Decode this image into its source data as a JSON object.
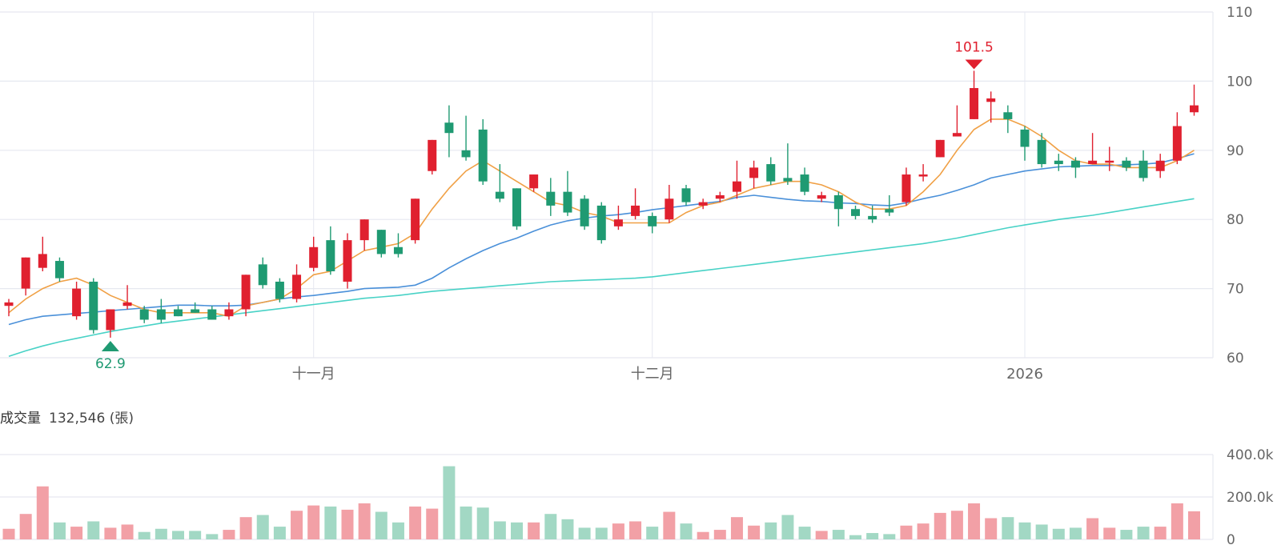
{
  "volume_header": {
    "label": "成交量",
    "value": "132,546 (張)"
  },
  "colors": {
    "up": "#e0202f",
    "down": "#1f9a72",
    "ma_short": "#f0a045",
    "ma_mid": "#4a90d9",
    "ma_long": "#48d2c6",
    "up_vol": "#f2a0a6",
    "down_vol": "#a2d8c4",
    "grid": "#e6e8f0",
    "axis_text": "#666666"
  },
  "chart_data": [
    {
      "type": "candlestick",
      "y_axis": {
        "ticks": [
          110,
          100,
          90,
          80,
          70,
          60
        ],
        "ylim": [
          60,
          110
        ],
        "position": "right"
      },
      "x_axis": {
        "labels": [
          {
            "text": "十一月",
            "index": 18
          },
          {
            "text": "十二月",
            "index": 38
          },
          {
            "text": "2026",
            "index": 60
          }
        ]
      },
      "annotations": [
        {
          "text": "101.5",
          "index": 57,
          "value": 101.5,
          "kind": "high"
        },
        {
          "text": "62.9",
          "index": 6,
          "value": 62.9,
          "kind": "low"
        }
      ],
      "ohlc": [
        [
          67.5,
          68.0,
          66.0,
          68.5
        ],
        [
          70.0,
          74.5,
          69.0,
          74.5
        ],
        [
          73.0,
          75.0,
          72.5,
          77.5
        ],
        [
          74.0,
          71.5,
          71.0,
          74.5
        ],
        [
          66.0,
          70.0,
          65.5,
          71.0
        ],
        [
          71.0,
          64.0,
          63.5,
          71.5
        ],
        [
          64.0,
          67.0,
          62.9,
          67.0
        ],
        [
          67.5,
          68.0,
          67.0,
          70.5
        ],
        [
          67.0,
          65.5,
          65.0,
          67.5
        ],
        [
          67.0,
          65.5,
          65.0,
          68.5
        ],
        [
          67.0,
          66.0,
          66.0,
          67.5
        ],
        [
          67.0,
          66.5,
          66.5,
          68.0
        ],
        [
          67.0,
          65.5,
          65.5,
          67.5
        ],
        [
          66.0,
          67.0,
          65.5,
          68.0
        ],
        [
          67.0,
          72.0,
          66.0,
          72.0
        ],
        [
          73.5,
          70.5,
          70.0,
          74.5
        ],
        [
          71.0,
          68.5,
          68.0,
          71.5
        ],
        [
          68.5,
          72.0,
          68.0,
          73.5
        ],
        [
          73.0,
          76.0,
          72.5,
          77.5
        ],
        [
          77.0,
          72.5,
          72.0,
          79.0
        ],
        [
          71.0,
          77.0,
          70.0,
          78.0
        ],
        [
          77.0,
          80.0,
          75.5,
          80.0
        ],
        [
          78.5,
          75.0,
          74.5,
          78.5
        ],
        [
          76.0,
          75.0,
          74.5,
          78.0
        ],
        [
          77.0,
          83.0,
          76.5,
          83.0
        ],
        [
          87.0,
          91.5,
          86.5,
          91.5
        ],
        [
          94.0,
          92.5,
          89.0,
          96.5
        ],
        [
          90.0,
          89.0,
          88.5,
          95.0
        ],
        [
          93.0,
          85.5,
          85.0,
          94.5
        ],
        [
          84.0,
          83.0,
          82.5,
          88.0
        ],
        [
          84.5,
          79.0,
          78.5,
          84.5
        ],
        [
          84.5,
          86.5,
          84.0,
          86.5
        ],
        [
          84.0,
          82.0,
          80.5,
          86.0
        ],
        [
          84.0,
          81.0,
          80.5,
          87.0
        ],
        [
          83.0,
          79.0,
          78.5,
          83.5
        ],
        [
          82.0,
          77.0,
          76.5,
          82.5
        ],
        [
          79.0,
          80.0,
          78.5,
          82.0
        ],
        [
          80.5,
          82.0,
          80.0,
          84.5
        ],
        [
          80.5,
          79.0,
          78.0,
          81.0
        ],
        [
          80.0,
          83.0,
          79.5,
          85.0
        ],
        [
          84.5,
          82.5,
          82.0,
          85.0
        ],
        [
          82.0,
          82.5,
          81.5,
          83.0
        ],
        [
          83.0,
          83.5,
          82.5,
          84.0
        ],
        [
          84.0,
          85.5,
          83.0,
          88.5
        ],
        [
          86.0,
          87.5,
          84.5,
          88.5
        ],
        [
          88.0,
          85.5,
          85.0,
          89.0
        ],
        [
          86.0,
          85.5,
          85.0,
          91.0
        ],
        [
          86.5,
          84.0,
          83.5,
          87.5
        ],
        [
          83.0,
          83.5,
          82.5,
          84.0
        ],
        [
          83.5,
          81.5,
          79.0,
          84.0
        ],
        [
          81.5,
          80.5,
          80.0,
          82.0
        ],
        [
          80.5,
          80.0,
          79.5,
          82.0
        ],
        [
          81.5,
          81.0,
          80.5,
          83.5
        ],
        [
          82.5,
          86.5,
          82.0,
          87.5
        ],
        [
          86.5,
          86.5,
          85.5,
          88.0
        ],
        [
          89.0,
          91.5,
          89.0,
          91.5
        ],
        [
          92.0,
          92.5,
          92.0,
          96.5
        ],
        [
          94.5,
          99.0,
          94.5,
          101.5
        ],
        [
          97.0,
          97.5,
          94.0,
          98.5
        ],
        [
          95.5,
          94.5,
          92.5,
          96.5
        ],
        [
          93.0,
          90.5,
          88.5,
          93.5
        ],
        [
          91.5,
          88.0,
          87.5,
          92.5
        ],
        [
          88.5,
          88.0,
          87.0,
          89.5
        ],
        [
          88.5,
          87.5,
          86.0,
          89.0
        ],
        [
          88.0,
          88.5,
          88.0,
          92.5
        ],
        [
          88.5,
          88.5,
          87.0,
          90.5
        ],
        [
          88.5,
          87.5,
          87.0,
          89.0
        ],
        [
          88.5,
          86.0,
          85.5,
          90.0
        ],
        [
          87.0,
          88.5,
          86.0,
          89.5
        ],
        [
          88.5,
          93.5,
          88.0,
          95.5
        ],
        [
          95.5,
          96.5,
          95.0,
          99.5
        ]
      ],
      "ma_short": [
        66.5,
        68.5,
        70.0,
        71.0,
        71.5,
        70.5,
        69.0,
        68.0,
        67.0,
        66.5,
        66.5,
        66.5,
        66.5,
        66.0,
        67.5,
        68.0,
        68.5,
        70.0,
        72.0,
        72.5,
        74.0,
        75.5,
        76.0,
        76.5,
        78.0,
        81.5,
        84.5,
        87.0,
        88.5,
        87.0,
        85.5,
        84.0,
        82.5,
        82.0,
        81.0,
        80.5,
        79.5,
        79.5,
        79.5,
        79.5,
        81.0,
        82.0,
        82.5,
        83.5,
        84.5,
        85.0,
        85.5,
        85.5,
        85.0,
        84.0,
        82.5,
        81.5,
        81.5,
        82.0,
        84.0,
        86.5,
        90.0,
        93.0,
        94.5,
        94.5,
        93.5,
        92.0,
        90.0,
        88.5,
        88.0,
        88.0,
        87.5,
        87.5,
        87.5,
        88.5,
        90.0
      ],
      "ma_mid": [
        64.8,
        65.5,
        66.0,
        66.2,
        66.4,
        66.6,
        66.8,
        67.0,
        67.2,
        67.4,
        67.6,
        67.6,
        67.5,
        67.5,
        67.6,
        68.0,
        68.5,
        68.8,
        69.0,
        69.3,
        69.6,
        70.0,
        70.1,
        70.2,
        70.5,
        71.5,
        73.0,
        74.3,
        75.5,
        76.5,
        77.3,
        78.3,
        79.2,
        79.8,
        80.2,
        80.5,
        80.7,
        81.0,
        81.4,
        81.7,
        82.0,
        82.3,
        82.6,
        83.2,
        83.5,
        83.2,
        82.9,
        82.7,
        82.6,
        82.4,
        82.3,
        82.1,
        82.0,
        82.4,
        83.0,
        83.5,
        84.2,
        85.0,
        86.0,
        86.5,
        87.0,
        87.3,
        87.6,
        87.7,
        87.8,
        87.8,
        87.9,
        88.0,
        88.2,
        88.8,
        89.5
      ],
      "ma_long": [
        60.2,
        61.0,
        61.7,
        62.3,
        62.8,
        63.3,
        63.8,
        64.2,
        64.6,
        65.0,
        65.3,
        65.6,
        65.9,
        66.2,
        66.5,
        66.8,
        67.1,
        67.4,
        67.7,
        68.0,
        68.3,
        68.6,
        68.8,
        69.0,
        69.3,
        69.6,
        69.8,
        70.0,
        70.2,
        70.4,
        70.6,
        70.8,
        71.0,
        71.1,
        71.2,
        71.3,
        71.4,
        71.5,
        71.7,
        72.0,
        72.3,
        72.6,
        72.9,
        73.2,
        73.5,
        73.8,
        74.1,
        74.4,
        74.7,
        75.0,
        75.3,
        75.6,
        75.9,
        76.2,
        76.5,
        76.9,
        77.3,
        77.8,
        78.3,
        78.8,
        79.2,
        79.6,
        80.0,
        80.3,
        80.6,
        81.0,
        81.4,
        81.8,
        82.2,
        82.6,
        83.0
      ]
    },
    {
      "type": "bar",
      "title": "成交量",
      "y_axis": {
        "ticks": [
          "400.0k",
          "200.0k",
          "0"
        ],
        "ylim": [
          0,
          400000
        ],
        "position": "right"
      },
      "values": [
        50000,
        120000,
        250000,
        80000,
        60000,
        85000,
        55000,
        70000,
        35000,
        50000,
        40000,
        40000,
        25000,
        45000,
        105000,
        115000,
        60000,
        135000,
        160000,
        155000,
        140000,
        170000,
        130000,
        80000,
        155000,
        145000,
        345000,
        155000,
        150000,
        85000,
        80000,
        80000,
        120000,
        95000,
        55000,
        55000,
        75000,
        85000,
        60000,
        130000,
        75000,
        35000,
        45000,
        105000,
        65000,
        80000,
        115000,
        60000,
        40000,
        45000,
        20000,
        30000,
        25000,
        65000,
        75000,
        125000,
        135000,
        170000,
        100000,
        105000,
        80000,
        70000,
        50000,
        55000,
        100000,
        55000,
        45000,
        60000,
        60000,
        170000,
        132546
      ]
    }
  ]
}
